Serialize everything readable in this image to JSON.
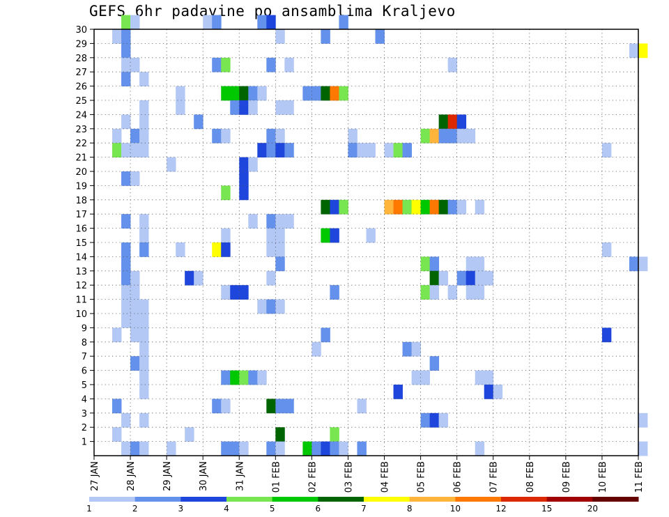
{
  "title": "GEFS 6hr padavine po ansamblima Kraljevo",
  "chart_data": {
    "type": "heatmap",
    "title": "GEFS 6hr padavine po ansamblima Kraljevo",
    "x_axis": {
      "ticks": [
        "27 JAN",
        "28 JAN",
        "29 JAN",
        "30 JAN",
        "31 JAN",
        "01 FEB",
        "02 FEB",
        "03 FEB",
        "04 FEB",
        "05 FEB",
        "06 FEB",
        "07 FEB",
        "08 FEB",
        "09 FEB",
        "10 FEB",
        "11 FEB"
      ]
    },
    "y_axis": {
      "ticks": [
        "1",
        "2",
        "3",
        "4",
        "5",
        "6",
        "7",
        "8",
        "9",
        "10",
        "11",
        "12",
        "13",
        "14",
        "15",
        "16",
        "17",
        "18",
        "19",
        "20",
        "21",
        "22",
        "23",
        "24",
        "25",
        "26",
        "27",
        "28",
        "29",
        "30"
      ],
      "range": [
        0,
        30
      ]
    },
    "grid": true,
    "legend": {
      "placement": "bottom",
      "labels": [
        "1",
        "2",
        "3",
        "4",
        "5",
        "6",
        "7",
        "8",
        "10",
        "12",
        "15",
        "20"
      ],
      "colors": [
        "#b4c8f5",
        "#6491eb",
        "#1e46dc",
        "#78e650",
        "#00c800",
        "#006400",
        "#ffff00",
        "#ffb43c",
        "#ff7800",
        "#dc2800",
        "#a00000",
        "#640000"
      ]
    },
    "cells": [
      {
        "t": 3,
        "m": 30,
        "c": 4
      },
      {
        "t": 4,
        "m": 30,
        "c": 1
      },
      {
        "t": 12,
        "m": 30,
        "c": 1
      },
      {
        "t": 13,
        "m": 30,
        "c": 2
      },
      {
        "t": 18,
        "m": 30,
        "c": 2
      },
      {
        "t": 19,
        "m": 30,
        "c": 3
      },
      {
        "t": 27,
        "m": 30,
        "c": 2
      },
      {
        "t": 2,
        "m": 29,
        "c": 1
      },
      {
        "t": 3,
        "m": 29,
        "c": 2
      },
      {
        "t": 20,
        "m": 29,
        "c": 1
      },
      {
        "t": 25,
        "m": 29,
        "c": 2
      },
      {
        "t": 31,
        "m": 29,
        "c": 2
      },
      {
        "t": 3,
        "m": 28,
        "c": 2
      },
      {
        "t": 59,
        "m": 28,
        "c": 1
      },
      {
        "t": 60,
        "m": 28,
        "c": 7
      },
      {
        "t": 3,
        "m": 27,
        "c": 1
      },
      {
        "t": 4,
        "m": 27,
        "c": 1
      },
      {
        "t": 13,
        "m": 27,
        "c": 2
      },
      {
        "t": 14,
        "m": 27,
        "c": 4
      },
      {
        "t": 19,
        "m": 27,
        "c": 2
      },
      {
        "t": 21,
        "m": 27,
        "c": 1
      },
      {
        "t": 39,
        "m": 27,
        "c": 1
      },
      {
        "t": 3,
        "m": 26,
        "c": 2
      },
      {
        "t": 5,
        "m": 26,
        "c": 1
      },
      {
        "t": 9,
        "m": 25,
        "c": 1
      },
      {
        "t": 14,
        "m": 25,
        "c": 5
      },
      {
        "t": 15,
        "m": 25,
        "c": 5
      },
      {
        "t": 16,
        "m": 25,
        "c": 6
      },
      {
        "t": 17,
        "m": 25,
        "c": 2
      },
      {
        "t": 18,
        "m": 25,
        "c": 1
      },
      {
        "t": 23,
        "m": 25,
        "c": 2
      },
      {
        "t": 24,
        "m": 25,
        "c": 2
      },
      {
        "t": 25,
        "m": 25,
        "c": 6
      },
      {
        "t": 26,
        "m": 25,
        "c": 9
      },
      {
        "t": 27,
        "m": 25,
        "c": 4
      },
      {
        "t": 5,
        "m": 24,
        "c": 1
      },
      {
        "t": 9,
        "m": 24,
        "c": 1
      },
      {
        "t": 15,
        "m": 24,
        "c": 2
      },
      {
        "t": 16,
        "m": 24,
        "c": 3
      },
      {
        "t": 17,
        "m": 24,
        "c": 1
      },
      {
        "t": 20,
        "m": 24,
        "c": 1
      },
      {
        "t": 21,
        "m": 24,
        "c": 1
      },
      {
        "t": 3,
        "m": 23,
        "c": 1
      },
      {
        "t": 5,
        "m": 23,
        "c": 1
      },
      {
        "t": 11,
        "m": 23,
        "c": 2
      },
      {
        "t": 38,
        "m": 23,
        "c": 6
      },
      {
        "t": 39,
        "m": 23,
        "c": 10
      },
      {
        "t": 40,
        "m": 23,
        "c": 3
      },
      {
        "t": 2,
        "m": 22,
        "c": 1
      },
      {
        "t": 4,
        "m": 22,
        "c": 2
      },
      {
        "t": 5,
        "m": 22,
        "c": 1
      },
      {
        "t": 13,
        "m": 22,
        "c": 2
      },
      {
        "t": 14,
        "m": 22,
        "c": 1
      },
      {
        "t": 19,
        "m": 22,
        "c": 2
      },
      {
        "t": 20,
        "m": 22,
        "c": 1
      },
      {
        "t": 28,
        "m": 22,
        "c": 1
      },
      {
        "t": 36,
        "m": 22,
        "c": 4
      },
      {
        "t": 37,
        "m": 22,
        "c": 8
      },
      {
        "t": 38,
        "m": 22,
        "c": 2
      },
      {
        "t": 39,
        "m": 22,
        "c": 2
      },
      {
        "t": 40,
        "m": 22,
        "c": 1
      },
      {
        "t": 41,
        "m": 22,
        "c": 1
      },
      {
        "t": 2,
        "m": 21,
        "c": 4
      },
      {
        "t": 3,
        "m": 21,
        "c": 1
      },
      {
        "t": 4,
        "m": 21,
        "c": 1
      },
      {
        "t": 5,
        "m": 21,
        "c": 1
      },
      {
        "t": 18,
        "m": 21,
        "c": 3
      },
      {
        "t": 19,
        "m": 21,
        "c": 2
      },
      {
        "t": 20,
        "m": 21,
        "c": 3
      },
      {
        "t": 21,
        "m": 21,
        "c": 2
      },
      {
        "t": 28,
        "m": 21,
        "c": 2
      },
      {
        "t": 29,
        "m": 21,
        "c": 1
      },
      {
        "t": 30,
        "m": 21,
        "c": 1
      },
      {
        "t": 32,
        "m": 21,
        "c": 1
      },
      {
        "t": 33,
        "m": 21,
        "c": 4
      },
      {
        "t": 34,
        "m": 21,
        "c": 2
      },
      {
        "t": 56,
        "m": 21,
        "c": 1
      },
      {
        "t": 8,
        "m": 20,
        "c": 1
      },
      {
        "t": 16,
        "m": 20,
        "c": 3
      },
      {
        "t": 17,
        "m": 20,
        "c": 1
      },
      {
        "t": 3,
        "m": 19,
        "c": 2
      },
      {
        "t": 4,
        "m": 19,
        "c": 1
      },
      {
        "t": 16,
        "m": 19,
        "c": 3
      },
      {
        "t": 14,
        "m": 18,
        "c": 4
      },
      {
        "t": 16,
        "m": 18,
        "c": 3
      },
      {
        "t": 25,
        "m": 17,
        "c": 6
      },
      {
        "t": 26,
        "m": 17,
        "c": 3
      },
      {
        "t": 27,
        "m": 17,
        "c": 4
      },
      {
        "t": 32,
        "m": 17,
        "c": 8
      },
      {
        "t": 33,
        "m": 17,
        "c": 9
      },
      {
        "t": 34,
        "m": 17,
        "c": 4
      },
      {
        "t": 35,
        "m": 17,
        "c": 7
      },
      {
        "t": 36,
        "m": 17,
        "c": 5
      },
      {
        "t": 37,
        "m": 17,
        "c": 9
      },
      {
        "t": 38,
        "m": 17,
        "c": 6
      },
      {
        "t": 39,
        "m": 17,
        "c": 2
      },
      {
        "t": 40,
        "m": 17,
        "c": 1
      },
      {
        "t": 42,
        "m": 17,
        "c": 1
      },
      {
        "t": 3,
        "m": 16,
        "c": 2
      },
      {
        "t": 5,
        "m": 16,
        "c": 1
      },
      {
        "t": 17,
        "m": 16,
        "c": 1
      },
      {
        "t": 19,
        "m": 16,
        "c": 2
      },
      {
        "t": 20,
        "m": 16,
        "c": 1
      },
      {
        "t": 21,
        "m": 16,
        "c": 1
      },
      {
        "t": 5,
        "m": 15,
        "c": 1
      },
      {
        "t": 14,
        "m": 15,
        "c": 1
      },
      {
        "t": 19,
        "m": 15,
        "c": 1
      },
      {
        "t": 20,
        "m": 15,
        "c": 1
      },
      {
        "t": 25,
        "m": 15,
        "c": 5
      },
      {
        "t": 26,
        "m": 15,
        "c": 3
      },
      {
        "t": 30,
        "m": 15,
        "c": 1
      },
      {
        "t": 3,
        "m": 14,
        "c": 2
      },
      {
        "t": 5,
        "m": 14,
        "c": 2
      },
      {
        "t": 9,
        "m": 14,
        "c": 1
      },
      {
        "t": 13,
        "m": 14,
        "c": 7
      },
      {
        "t": 14,
        "m": 14,
        "c": 3
      },
      {
        "t": 19,
        "m": 14,
        "c": 1
      },
      {
        "t": 20,
        "m": 14,
        "c": 1
      },
      {
        "t": 56,
        "m": 14,
        "c": 1
      },
      {
        "t": 3,
        "m": 13,
        "c": 2
      },
      {
        "t": 20,
        "m": 13,
        "c": 2
      },
      {
        "t": 36,
        "m": 13,
        "c": 4
      },
      {
        "t": 37,
        "m": 13,
        "c": 2
      },
      {
        "t": 41,
        "m": 13,
        "c": 1
      },
      {
        "t": 42,
        "m": 13,
        "c": 1
      },
      {
        "t": 59,
        "m": 13,
        "c": 2
      },
      {
        "t": 60,
        "m": 13,
        "c": 1
      },
      {
        "t": 3,
        "m": 12,
        "c": 2
      },
      {
        "t": 4,
        "m": 12,
        "c": 1
      },
      {
        "t": 10,
        "m": 12,
        "c": 3
      },
      {
        "t": 11,
        "m": 12,
        "c": 1
      },
      {
        "t": 19,
        "m": 12,
        "c": 1
      },
      {
        "t": 37,
        "m": 12,
        "c": 6
      },
      {
        "t": 38,
        "m": 12,
        "c": 1
      },
      {
        "t": 40,
        "m": 12,
        "c": 2
      },
      {
        "t": 41,
        "m": 12,
        "c": 3
      },
      {
        "t": 42,
        "m": 12,
        "c": 1
      },
      {
        "t": 43,
        "m": 12,
        "c": 1
      },
      {
        "t": 3,
        "m": 11,
        "c": 1
      },
      {
        "t": 4,
        "m": 11,
        "c": 1
      },
      {
        "t": 14,
        "m": 11,
        "c": 1
      },
      {
        "t": 15,
        "m": 11,
        "c": 3
      },
      {
        "t": 16,
        "m": 11,
        "c": 3
      },
      {
        "t": 26,
        "m": 11,
        "c": 2
      },
      {
        "t": 36,
        "m": 11,
        "c": 4
      },
      {
        "t": 37,
        "m": 11,
        "c": 1
      },
      {
        "t": 39,
        "m": 11,
        "c": 1
      },
      {
        "t": 41,
        "m": 11,
        "c": 1
      },
      {
        "t": 42,
        "m": 11,
        "c": 1
      },
      {
        "t": 3,
        "m": 10,
        "c": 1
      },
      {
        "t": 4,
        "m": 10,
        "c": 1
      },
      {
        "t": 5,
        "m": 10,
        "c": 1
      },
      {
        "t": 18,
        "m": 10,
        "c": 1
      },
      {
        "t": 19,
        "m": 10,
        "c": 2
      },
      {
        "t": 20,
        "m": 10,
        "c": 1
      },
      {
        "t": 3,
        "m": 9,
        "c": 1
      },
      {
        "t": 4,
        "m": 9,
        "c": 1
      },
      {
        "t": 5,
        "m": 9,
        "c": 1
      },
      {
        "t": 2,
        "m": 8,
        "c": 1
      },
      {
        "t": 4,
        "m": 8,
        "c": 1
      },
      {
        "t": 5,
        "m": 8,
        "c": 1
      },
      {
        "t": 25,
        "m": 8,
        "c": 2
      },
      {
        "t": 56,
        "m": 8,
        "c": 3
      },
      {
        "t": 5,
        "m": 7,
        "c": 1
      },
      {
        "t": 24,
        "m": 7,
        "c": 1
      },
      {
        "t": 34,
        "m": 7,
        "c": 2
      },
      {
        "t": 35,
        "m": 7,
        "c": 1
      },
      {
        "t": 4,
        "m": 6,
        "c": 2
      },
      {
        "t": 5,
        "m": 6,
        "c": 1
      },
      {
        "t": 37,
        "m": 6,
        "c": 2
      },
      {
        "t": 5,
        "m": 5,
        "c": 1
      },
      {
        "t": 14,
        "m": 5,
        "c": 2
      },
      {
        "t": 15,
        "m": 5,
        "c": 5
      },
      {
        "t": 16,
        "m": 5,
        "c": 4
      },
      {
        "t": 17,
        "m": 5,
        "c": 2
      },
      {
        "t": 18,
        "m": 5,
        "c": 1
      },
      {
        "t": 35,
        "m": 5,
        "c": 1
      },
      {
        "t": 36,
        "m": 5,
        "c": 1
      },
      {
        "t": 42,
        "m": 5,
        "c": 1
      },
      {
        "t": 43,
        "m": 5,
        "c": 1
      },
      {
        "t": 5,
        "m": 4,
        "c": 1
      },
      {
        "t": 33,
        "m": 4,
        "c": 3
      },
      {
        "t": 43,
        "m": 4,
        "c": 3
      },
      {
        "t": 44,
        "m": 4,
        "c": 1
      },
      {
        "t": 2,
        "m": 3,
        "c": 2
      },
      {
        "t": 13,
        "m": 3,
        "c": 2
      },
      {
        "t": 14,
        "m": 3,
        "c": 1
      },
      {
        "t": 19,
        "m": 3,
        "c": 6
      },
      {
        "t": 20,
        "m": 3,
        "c": 2
      },
      {
        "t": 21,
        "m": 3,
        "c": 2
      },
      {
        "t": 29,
        "m": 3,
        "c": 1
      },
      {
        "t": 3,
        "m": 2,
        "c": 1
      },
      {
        "t": 5,
        "m": 2,
        "c": 1
      },
      {
        "t": 36,
        "m": 2,
        "c": 2
      },
      {
        "t": 37,
        "m": 2,
        "c": 3
      },
      {
        "t": 38,
        "m": 2,
        "c": 1
      },
      {
        "t": 60,
        "m": 2,
        "c": 1
      },
      {
        "t": 2,
        "m": 1,
        "c": 1
      },
      {
        "t": 10,
        "m": 1,
        "c": 1
      },
      {
        "t": 20,
        "m": 1,
        "c": 6
      },
      {
        "t": 26,
        "m": 1,
        "c": 4
      },
      {
        "t": 3,
        "m": 0,
        "c": 1
      },
      {
        "t": 4,
        "m": 0,
        "c": 2
      },
      {
        "t": 5,
        "m": 0,
        "c": 1
      },
      {
        "t": 8,
        "m": 0,
        "c": 1
      },
      {
        "t": 14,
        "m": 0,
        "c": 2
      },
      {
        "t": 15,
        "m": 0,
        "c": 2
      },
      {
        "t": 16,
        "m": 0,
        "c": 1
      },
      {
        "t": 19,
        "m": 0,
        "c": 2
      },
      {
        "t": 20,
        "m": 0,
        "c": 1
      },
      {
        "t": 23,
        "m": 0,
        "c": 5
      },
      {
        "t": 24,
        "m": 0,
        "c": 2
      },
      {
        "t": 25,
        "m": 0,
        "c": 3
      },
      {
        "t": 26,
        "m": 0,
        "c": 2
      },
      {
        "t": 27,
        "m": 0,
        "c": 1
      },
      {
        "t": 29,
        "m": 0,
        "c": 2
      },
      {
        "t": 42,
        "m": 0,
        "c": 1
      },
      {
        "t": 60,
        "m": 0,
        "c": 1
      }
    ]
  }
}
